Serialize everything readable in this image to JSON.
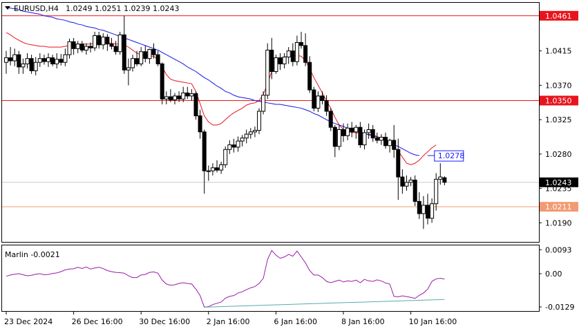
{
  "window": {
    "symbol_label": "EURUSD,H4",
    "ohlc_label": "1.0249 1.0251 1.0239 1.0243"
  },
  "indicator": {
    "label": "Marlin -0.0021"
  },
  "colors": {
    "background": "#ffffff",
    "candle": "#000000",
    "ma_fast": "#e8141c",
    "ma_slow": "#1414e8",
    "hline_red": "#e8141c",
    "hline_orange": "#f29a72",
    "osc_line": "#9a1aa8",
    "osc_trend": "#5aa9a9",
    "grid": "#c9c9c9",
    "price_box_blue": "#1a1aff"
  },
  "chart_data": [
    {
      "type": "candlestick",
      "title": "EURUSD,H4",
      "ylim": [
        1.0165,
        1.0478
      ],
      "y_ticks": [
        "1.0415",
        "1.0370",
        "1.0325",
        "1.0280",
        "1.0235",
        "1.0190"
      ],
      "x_ticks": [
        "23 Dec 2024",
        "26 Dec 16:00",
        "30 Dec 16:00",
        "2 Jan 16:00",
        "6 Jan 16:00",
        "8 Jan 16:00",
        "10 Jan 16:00"
      ],
      "x_tick_index": [
        0,
        16,
        32,
        48,
        64,
        80,
        96
      ],
      "ohlc": [
        [
          1.04,
          1.0415,
          1.0385,
          1.0406
        ],
        [
          1.0406,
          1.042,
          1.0396,
          1.0402
        ],
        [
          1.0402,
          1.0418,
          1.0395,
          1.041
        ],
        [
          1.041,
          1.0415,
          1.0385,
          1.0394
        ],
        [
          1.0394,
          1.0405,
          1.0385,
          1.0398
        ],
        [
          1.0398,
          1.0412,
          1.0392,
          1.0405
        ],
        [
          1.0405,
          1.041,
          1.0385,
          1.0389
        ],
        [
          1.0389,
          1.0407,
          1.0383,
          1.04
        ],
        [
          1.04,
          1.0412,
          1.0394,
          1.0405
        ],
        [
          1.0405,
          1.041,
          1.0397,
          1.0401
        ],
        [
          1.0401,
          1.0412,
          1.0394,
          1.0406
        ],
        [
          1.0406,
          1.041,
          1.0395,
          1.0398
        ],
        [
          1.0398,
          1.0412,
          1.0392,
          1.0404
        ],
        [
          1.0404,
          1.0411,
          1.0396,
          1.04
        ],
        [
          1.04,
          1.0418,
          1.0395,
          1.041
        ],
        [
          1.041,
          1.0431,
          1.0405,
          1.0427
        ],
        [
          1.0427,
          1.0432,
          1.041,
          1.0418
        ],
        [
          1.0418,
          1.0428,
          1.0412,
          1.0424
        ],
        [
          1.0424,
          1.0428,
          1.0413,
          1.0416
        ],
        [
          1.0416,
          1.0425,
          1.041,
          1.0421
        ],
        [
          1.0421,
          1.0426,
          1.0413,
          1.0419
        ],
        [
          1.0419,
          1.044,
          1.0415,
          1.0435
        ],
        [
          1.0435,
          1.044,
          1.0418,
          1.0423
        ],
        [
          1.0423,
          1.0438,
          1.0417,
          1.0433
        ],
        [
          1.0433,
          1.0437,
          1.0415,
          1.0424
        ],
        [
          1.0424,
          1.0432,
          1.0417,
          1.0421
        ],
        [
          1.0421,
          1.0428,
          1.041,
          1.0414
        ],
        [
          1.0414,
          1.044,
          1.041,
          1.0436
        ],
        [
          1.0436,
          1.0461,
          1.0385,
          1.039
        ],
        [
          1.039,
          1.0405,
          1.037,
          1.0393
        ],
        [
          1.0393,
          1.041,
          1.0388,
          1.0405
        ],
        [
          1.0405,
          1.0415,
          1.0395,
          1.0398
        ],
        [
          1.0398,
          1.042,
          1.0395,
          1.0414
        ],
        [
          1.0414,
          1.0422,
          1.04,
          1.0405
        ],
        [
          1.0405,
          1.0418,
          1.0398,
          1.0417
        ],
        [
          1.0417,
          1.0425,
          1.0405,
          1.041
        ],
        [
          1.041,
          1.0415,
          1.0395,
          1.0398
        ],
        [
          1.0398,
          1.04,
          1.0345,
          1.0352
        ],
        [
          1.0352,
          1.0362,
          1.0345,
          1.0355
        ],
        [
          1.0355,
          1.0365,
          1.0348,
          1.0351
        ],
        [
          1.0351,
          1.036,
          1.0345,
          1.0356
        ],
        [
          1.0356,
          1.0362,
          1.0348,
          1.0352
        ],
        [
          1.0352,
          1.0368,
          1.0348,
          1.036
        ],
        [
          1.036,
          1.0368,
          1.0352,
          1.0356
        ],
        [
          1.0356,
          1.0365,
          1.035,
          1.0359
        ],
        [
          1.0359,
          1.0362,
          1.0325,
          1.033
        ],
        [
          1.033,
          1.0338,
          1.03,
          1.0309
        ],
        [
          1.0309,
          1.0312,
          1.0228,
          1.0258
        ],
        [
          1.0258,
          1.0265,
          1.0245,
          1.0258
        ],
        [
          1.0258,
          1.0268,
          1.0252,
          1.0262
        ],
        [
          1.0262,
          1.0272,
          1.0256,
          1.0259
        ],
        [
          1.0259,
          1.027,
          1.0254,
          1.0266
        ],
        [
          1.0266,
          1.029,
          1.0262,
          1.0286
        ],
        [
          1.0286,
          1.0298,
          1.028,
          1.0292
        ],
        [
          1.0292,
          1.03,
          1.0282,
          1.0289
        ],
        [
          1.0289,
          1.0303,
          1.0283,
          1.0297
        ],
        [
          1.0297,
          1.0305,
          1.029,
          1.0301
        ],
        [
          1.0301,
          1.0312,
          1.0294,
          1.0306
        ],
        [
          1.0306,
          1.0314,
          1.03,
          1.0309
        ],
        [
          1.0309,
          1.0316,
          1.0302,
          1.0311
        ],
        [
          1.0311,
          1.034,
          1.0306,
          1.0336
        ],
        [
          1.0336,
          1.0362,
          1.0332,
          1.0357
        ],
        [
          1.0357,
          1.0425,
          1.0352,
          1.0416
        ],
        [
          1.0416,
          1.0432,
          1.0378,
          1.0388
        ],
        [
          1.0388,
          1.041,
          1.0385,
          1.0406
        ],
        [
          1.0406,
          1.0412,
          1.039,
          1.0398
        ],
        [
          1.0398,
          1.0412,
          1.0392,
          1.0407
        ],
        [
          1.0407,
          1.042,
          1.0398,
          1.0415
        ],
        [
          1.0415,
          1.0425,
          1.0395,
          1.0401
        ],
        [
          1.0401,
          1.0435,
          1.0396,
          1.0426
        ],
        [
          1.0426,
          1.044,
          1.0418,
          1.0422
        ],
        [
          1.0422,
          1.0438,
          1.0395,
          1.04
        ],
        [
          1.04,
          1.0408,
          1.036,
          1.0364
        ],
        [
          1.0364,
          1.0368,
          1.0336,
          1.034
        ],
        [
          1.034,
          1.0362,
          1.0335,
          1.0356
        ],
        [
          1.0356,
          1.0362,
          1.0345,
          1.035
        ],
        [
          1.035,
          1.0357,
          1.033,
          1.0336
        ],
        [
          1.0336,
          1.034,
          1.031,
          1.0315
        ],
        [
          1.0315,
          1.0318,
          1.0276,
          1.029
        ],
        [
          1.029,
          1.0318,
          1.0285,
          1.0312
        ],
        [
          1.0312,
          1.032,
          1.0296,
          1.0304
        ],
        [
          1.0304,
          1.032,
          1.0298,
          1.0314
        ],
        [
          1.0314,
          1.0322,
          1.0302,
          1.0309
        ],
        [
          1.0309,
          1.0318,
          1.03,
          1.0315
        ],
        [
          1.0315,
          1.0322,
          1.0288,
          1.0292
        ],
        [
          1.0292,
          1.0312,
          1.0286,
          1.0308
        ],
        [
          1.0308,
          1.032,
          1.03,
          1.0312
        ],
        [
          1.0312,
          1.0318,
          1.0296,
          1.0301
        ],
        [
          1.0301,
          1.0308,
          1.0294,
          1.0298
        ],
        [
          1.0298,
          1.0306,
          1.0292,
          1.0302
        ],
        [
          1.0302,
          1.0308,
          1.0287,
          1.0291
        ],
        [
          1.0291,
          1.03,
          1.0282,
          1.0298
        ],
        [
          1.0298,
          1.0318,
          1.0275,
          1.0286
        ],
        [
          1.0286,
          1.03,
          1.022,
          1.025
        ],
        [
          1.025,
          1.026,
          1.0228,
          1.0238
        ],
        [
          1.0238,
          1.0252,
          1.0232,
          1.0243
        ],
        [
          1.0243,
          1.025,
          1.0238,
          1.0246
        ],
        [
          1.0246,
          1.0252,
          1.0212,
          1.0218
        ],
        [
          1.0218,
          1.023,
          1.0195,
          1.0202
        ],
        [
          1.0202,
          1.0225,
          1.0182,
          1.0213
        ],
        [
          1.0213,
          1.0228,
          1.0188,
          1.0196
        ],
        [
          1.0196,
          1.0222,
          1.019,
          1.0215
        ],
        [
          1.0215,
          1.0255,
          1.0206,
          1.0247
        ],
        [
          1.0247,
          1.0268,
          1.024,
          1.025
        ],
        [
          1.0249,
          1.0251,
          1.0239,
          1.0243
        ]
      ],
      "series": [
        {
          "type": "line",
          "color": "#e8141c",
          "values": [
            1.0439,
            1.0436,
            1.0432,
            1.0429,
            1.0426,
            1.0424,
            1.0423,
            1.0422,
            1.0421,
            1.0421,
            1.042,
            1.042,
            1.042,
            1.042,
            1.0421,
            1.0422,
            1.0423,
            1.0424,
            1.0424,
            1.0424,
            1.0424,
            1.0425,
            1.0425,
            1.0426,
            1.0426,
            1.0425,
            1.0424,
            1.0424,
            1.0423,
            1.042,
            1.0416,
            1.0412,
            1.041,
            1.0408,
            1.0408,
            1.0408,
            1.0404,
            1.0394,
            1.0384,
            1.0378,
            1.0376,
            1.0375,
            1.0374,
            1.0373,
            1.0372,
            1.0362,
            1.0346,
            1.033,
            1.0322,
            1.0318,
            1.0318,
            1.032,
            1.0325,
            1.033,
            1.0334,
            1.0337,
            1.034,
            1.0344,
            1.0346,
            1.0347,
            1.035,
            1.0358,
            1.0372,
            1.0388,
            1.0398,
            1.0404,
            1.0407,
            1.0408,
            1.0409,
            1.0409,
            1.0408,
            1.0402,
            1.0392,
            1.038,
            1.037,
            1.036,
            1.035,
            1.034,
            1.0328,
            1.0318,
            1.0312,
            1.031,
            1.0308,
            1.0308,
            1.0307,
            1.0306,
            1.0306,
            1.0305,
            1.0303,
            1.0301,
            1.0298,
            1.0294,
            1.029,
            1.0284,
            1.0276,
            1.0268,
            1.0266,
            1.0268,
            1.0272,
            1.0278,
            1.0283,
            1.0288,
            1.0292
          ]
        },
        {
          "type": "line",
          "color": "#1414e8",
          "values": [
            1.0472,
            1.0471,
            1.047,
            1.0469,
            1.0467,
            1.0466,
            1.0465,
            1.0464,
            1.0463,
            1.0461,
            1.046,
            1.0459,
            1.0457,
            1.0456,
            1.0455,
            1.0453,
            1.0452,
            1.045,
            1.0449,
            1.0447,
            1.0446,
            1.0445,
            1.0443,
            1.0442,
            1.044,
            1.0438,
            1.0436,
            1.0434,
            1.0432,
            1.043,
            1.0428,
            1.0426,
            1.0424,
            1.0422,
            1.042,
            1.0418,
            1.0416,
            1.0413,
            1.041,
            1.0407,
            1.0404,
            1.0401,
            1.0398,
            1.0394,
            1.0391,
            1.0388,
            1.0384,
            1.038,
            1.0377,
            1.0373,
            1.0369,
            1.0366,
            1.0362,
            1.036,
            1.0357,
            1.0355,
            1.0354,
            1.0353,
            1.0352,
            1.035,
            1.0349,
            1.0348,
            1.0347,
            1.0346,
            1.0345,
            1.0345,
            1.0344,
            1.0343,
            1.0342,
            1.0341,
            1.034,
            1.0338,
            1.0336,
            1.0333,
            1.0331,
            1.0328,
            1.0325,
            1.0322,
            1.032,
            1.0318,
            1.0316,
            1.0314,
            1.0312,
            1.031,
            1.0309,
            1.0307,
            1.0305,
            1.0304,
            1.0302,
            1.03,
            1.0298,
            1.0295,
            1.0292,
            1.029,
            1.0287,
            1.0284,
            1.0281,
            1.0279,
            1.0278
          ]
        }
      ],
      "hlines": [
        {
          "value": 1.0461,
          "label": "1.0461",
          "color": "#e8141c"
        },
        {
          "value": 1.035,
          "label": "1.0350",
          "color": "#e8141c"
        },
        {
          "value": 1.0211,
          "label": "1.0211",
          "color": "#f29a72"
        }
      ],
      "markers": [
        {
          "value": 1.0278,
          "label": "1.0278",
          "style": "box-blue"
        },
        {
          "value": 1.0243,
          "label": "1.0243",
          "style": "box-black"
        }
      ]
    },
    {
      "type": "line",
      "title": "Marlin -0.0021",
      "ylim": [
        -0.0145,
        0.011
      ],
      "y_ticks": [
        "0.0093",
        "0.00",
        "-0.0129"
      ],
      "series": [
        {
          "type": "line",
          "color": "#9a1aa8",
          "values": [
            -0.001,
            -0.0005,
            -0.0002,
            0.0,
            -0.0004,
            -0.0008,
            -0.0006,
            -0.0002,
            0.0,
            -0.0004,
            -0.0003,
            0.0001,
            0.0003,
            0.0008,
            0.0015,
            0.0018,
            0.0019,
            0.0025,
            0.002,
            0.0026,
            0.0018,
            0.0022,
            0.0025,
            0.002,
            0.0012,
            0.0008,
            0.0005,
            0.0004,
            0.0002,
            -0.0008,
            -0.0015,
            -0.0015,
            -0.0005,
            -0.0003,
            0.0005,
            0.0007,
            0.0002,
            -0.0025,
            -0.004,
            -0.0045,
            -0.0043,
            -0.0038,
            -0.0035,
            -0.0038,
            -0.004,
            -0.006,
            -0.0085,
            -0.013,
            -0.0128,
            -0.012,
            -0.0115,
            -0.011,
            -0.0095,
            -0.0088,
            -0.0085,
            -0.0075,
            -0.007,
            -0.0062,
            -0.0055,
            -0.005,
            -0.0038,
            -0.0018,
            0.0055,
            0.009,
            0.0072,
            0.006,
            0.0065,
            0.0075,
            0.0068,
            0.0088,
            0.0065,
            0.0042,
            0.0012,
            -0.0005,
            -0.0005,
            -0.0015,
            -0.003,
            -0.0035,
            -0.003,
            -0.0025,
            -0.0032,
            -0.0028,
            -0.003,
            -0.0025,
            -0.0035,
            -0.0022,
            -0.0028,
            -0.003,
            -0.0024,
            -0.0028,
            -0.0036,
            -0.004,
            -0.0088,
            -0.009,
            -0.0086,
            -0.0089,
            -0.0092,
            -0.0096,
            -0.0084,
            -0.0075,
            -0.006,
            -0.003,
            -0.002,
            -0.0018,
            -0.0021
          ]
        },
        {
          "type": "line",
          "color": "#5aa9a9",
          "points": [
            [
              47,
              -0.013
            ],
            [
              104,
              -0.01
            ]
          ]
        }
      ]
    }
  ]
}
